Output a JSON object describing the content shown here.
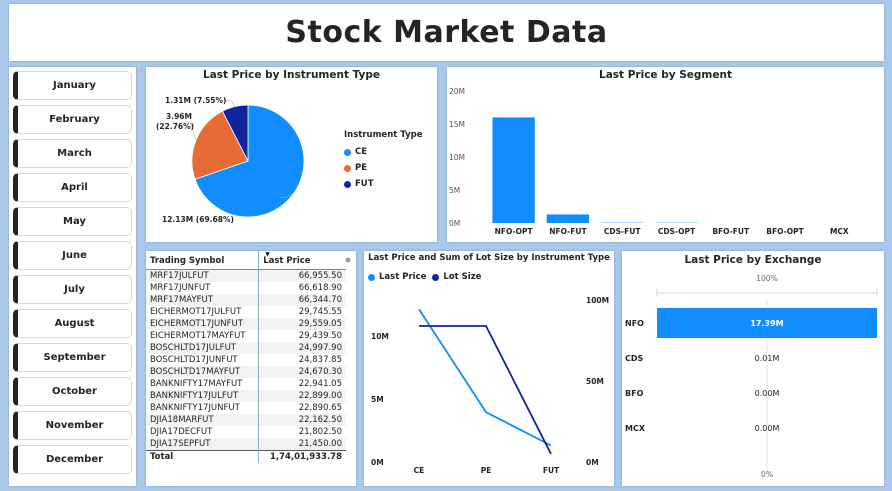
{
  "title": "Stock Market Data",
  "months": [
    "January",
    "February",
    "March",
    "April",
    "May",
    "June",
    "July",
    "August",
    "September",
    "October",
    "November",
    "December"
  ],
  "colors": {
    "ce": "#118DFF",
    "pe": "#E66C37",
    "fut": "#12239E",
    "dark": "#252423"
  },
  "chart_data": [
    {
      "type": "pie",
      "title": "Last Price by Instrument Type",
      "legend_title": "Instrument Type",
      "legend_position": "right",
      "categories": [
        "CE",
        "PE",
        "FUT"
      ],
      "values": [
        12.13,
        3.96,
        1.31
      ],
      "unit": "M",
      "labels": [
        "12.13M (69.68%)",
        "3.96M (22.76%)",
        "1.31M (7.55%)"
      ]
    },
    {
      "type": "bar",
      "title": "Last Price by Segment",
      "categories": [
        "NFO-OPT",
        "NFO-FUT",
        "CDS-FUT",
        "CDS-OPT",
        "BFO-FUT",
        "BFO-OPT",
        "MCX"
      ],
      "values": [
        16.0,
        1.3,
        0.05,
        0.04,
        0,
        0,
        0
      ],
      "ylim": [
        0,
        20
      ],
      "yticks": [
        "0M",
        "5M",
        "10M",
        "15M",
        "20M"
      ]
    },
    {
      "type": "table",
      "columns": [
        "Trading Symbol",
        "Last Price"
      ],
      "rows": [
        [
          "MRF17JULFUT",
          "66,955.50"
        ],
        [
          "MRF17JUNFUT",
          "66,618.90"
        ],
        [
          "MRF17MAYFUT",
          "66,344.70"
        ],
        [
          "EICHERMOT17JULFUT",
          "29,745.55"
        ],
        [
          "EICHERMOT17JUNFUT",
          "29,559.05"
        ],
        [
          "EICHERMOT17MAYFUT",
          "29,439.50"
        ],
        [
          "BOSCHLTD17JULFUT",
          "24,997.90"
        ],
        [
          "BOSCHLTD17JUNFUT",
          "24,837.85"
        ],
        [
          "BOSCHLTD17MAYFUT",
          "24,670.30"
        ],
        [
          "BANKNIFTY17MAYFUT",
          "22,941.05"
        ],
        [
          "BANKNIFTY17JULFUT",
          "22,899.00"
        ],
        [
          "BANKNIFTY17JUNFUT",
          "22,890.65"
        ],
        [
          "DJIA18MARFUT",
          "22,162.50"
        ],
        [
          "DJIA17DECFUT",
          "21,802.50"
        ],
        [
          "DJIA17SEPFUT",
          "21,450.00"
        ]
      ],
      "total_label": "Total",
      "total_value": "1,74,01,933.78"
    },
    {
      "type": "line",
      "title": "Last Price and Sum of Lot Size by Instrument Type",
      "categories": [
        "CE",
        "PE",
        "FUT"
      ],
      "series": [
        {
          "name": "Last Price",
          "values": [
            12.13,
            3.96,
            1.31
          ],
          "axis": "left"
        },
        {
          "name": "Lot Size",
          "values": [
            84,
            84,
            5
          ],
          "axis": "right"
        }
      ],
      "ylim_left": [
        0,
        13.5
      ],
      "yticks_left": [
        "0M",
        "5M",
        "10M"
      ],
      "ylim_right": [
        0,
        105
      ],
      "yticks_right": [
        "0M",
        "50M",
        "100M"
      ]
    },
    {
      "type": "bar",
      "orientation": "horizontal",
      "title": "Last Price by Exchange",
      "categories": [
        "NFO",
        "CDS",
        "BFO",
        "MCX"
      ],
      "values": [
        17.39,
        0.01,
        0.0,
        0.0
      ],
      "labels": [
        "17.39M",
        "0.01M",
        "0.00M",
        "0.00M"
      ],
      "axis_top_label": "100%",
      "axis_bottom_label": "0%"
    }
  ]
}
